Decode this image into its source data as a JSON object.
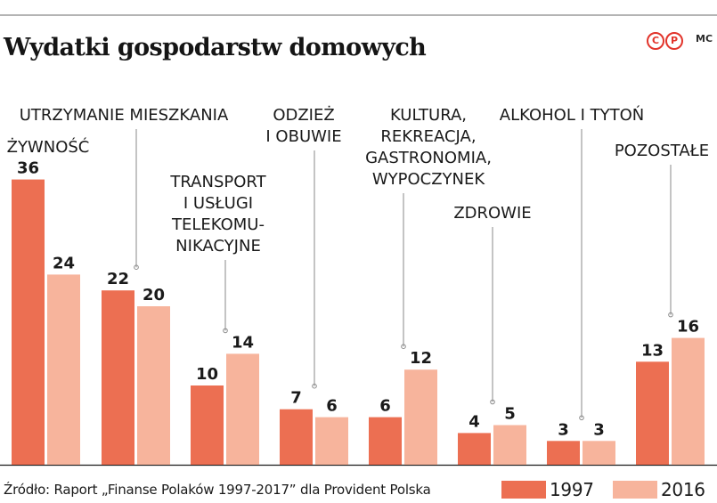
{
  "title": "Wydatki gospodarstw domowych",
  "logo_text": "©P",
  "author": "MC",
  "source": "Źródło: Raport „Finanse Polaków 1997-2017” dla Provident Polska",
  "colors": {
    "series_1997": "#ec6f52",
    "series_2016": "#f7b49c",
    "leader": "#8a8a8a",
    "axis": "#1a1a1a"
  },
  "chart_data": {
    "type": "bar",
    "categories": [
      [
        "ŻYWNOŚĆ"
      ],
      [
        "UTRZYMANIE MIESZKANIA"
      ],
      [
        "TRANSPORT",
        "I USŁUGI",
        "TELEKOMU-",
        "NIKACYJNE"
      ],
      [
        "ODZIEŻ",
        "I OBUWIE"
      ],
      [
        "KULTURA,",
        "REKREACJA,",
        "GASTRONOMIA,",
        "WYPOCZYNEK"
      ],
      [
        "ZDROWIE"
      ],
      [
        "ALKOHOL I TYTOŃ"
      ],
      [
        "POZOSTAŁE"
      ]
    ],
    "series": [
      {
        "name": "1997",
        "values": [
          36,
          22,
          10,
          7,
          6,
          4,
          3,
          13
        ]
      },
      {
        "name": "2016",
        "values": [
          24,
          20,
          14,
          6,
          12,
          5,
          3,
          16
        ]
      }
    ],
    "ylim": [
      0,
      36
    ],
    "grid": false,
    "legend": "bottom-right"
  }
}
